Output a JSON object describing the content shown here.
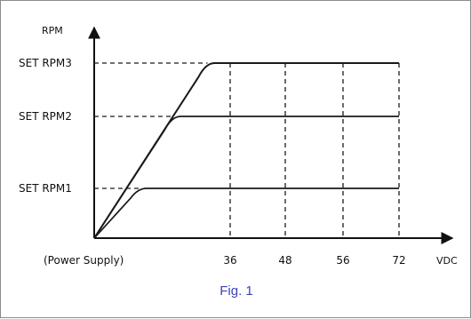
{
  "caption": "Fig. 1",
  "chart_data": {
    "type": "line",
    "ylabel": "RPM",
    "xlabel": "VDC",
    "x_ticks": [
      36,
      48,
      56,
      72
    ],
    "x_origin_label": "(Power Supply)",
    "y_levels": [
      {
        "label": "SET RPM1",
        "level": 1
      },
      {
        "label": "SET RPM2",
        "level": 2
      },
      {
        "label": "SET RPM3",
        "level": 3
      }
    ],
    "series": [
      {
        "name": "SET RPM1",
        "level": 1,
        "reaches_set_at_vdc": 12,
        "ends_at_vdc": 72
      },
      {
        "name": "SET RPM2",
        "level": 2,
        "reaches_set_at_vdc": 21,
        "ends_at_vdc": 72
      },
      {
        "name": "SET RPM3",
        "level": 3,
        "reaches_set_at_vdc": 30,
        "ends_at_vdc": 72
      }
    ],
    "colors": {
      "lines": "#1a1a1a",
      "caption": "#3a44b8"
    },
    "dashed_guides": true
  }
}
